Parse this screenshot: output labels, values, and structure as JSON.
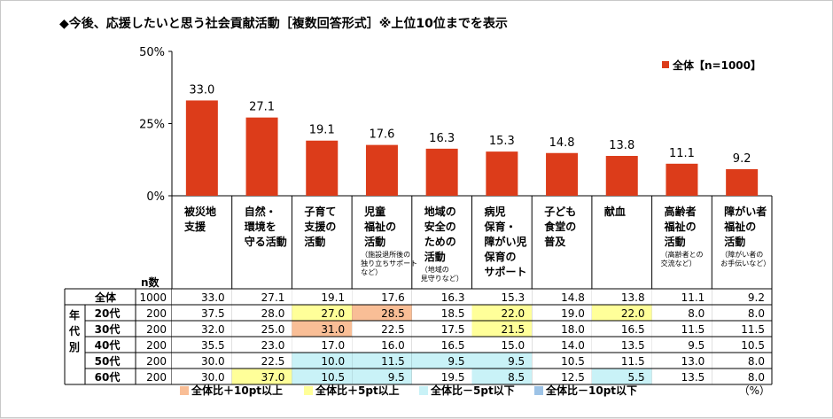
{
  "title": "◆今後、応援したいと思う社会貢献活動［複数回答形式］※上位10位までを表示",
  "chart_data": {
    "type": "bar",
    "ylim": [
      0,
      50
    ],
    "yticks": [
      "0%",
      "25%",
      "50%"
    ],
    "ytick_values": [
      0,
      25,
      50
    ],
    "bar_color": "#dc3c1a",
    "legend": "全体【n=1000】",
    "categories": [
      {
        "label": [
          "被災地",
          "支援"
        ],
        "sub": []
      },
      {
        "label": [
          "自然・",
          "環境を",
          "守る活動"
        ],
        "sub": []
      },
      {
        "label": [
          "子育て",
          "支援の",
          "活動"
        ],
        "sub": []
      },
      {
        "label": [
          "児童",
          "福祉の",
          "活動"
        ],
        "sub": [
          "（施設退所後の",
          "独り立ちサポート",
          "など）"
        ]
      },
      {
        "label": [
          "地域の",
          "安全の",
          "ための",
          "活動"
        ],
        "sub": [
          "（地域の",
          "見守りなど）"
        ]
      },
      {
        "label": [
          "病児",
          "保育・",
          "障がい児",
          "保育の",
          "サポート"
        ],
        "sub": []
      },
      {
        "label": [
          "子ども",
          "食堂の",
          "普及"
        ],
        "sub": []
      },
      {
        "label": [
          "献血"
        ],
        "sub": []
      },
      {
        "label": [
          "高齢者",
          "福祉の",
          "活動"
        ],
        "sub": [
          "（高齢者との",
          "交流など）"
        ]
      },
      {
        "label": [
          "障がい者",
          "福祉の",
          "活動"
        ],
        "sub": [
          "（障がい者の",
          "お手伝いなど）"
        ]
      }
    ],
    "series": [
      {
        "values": [
          33.0,
          27.1,
          19.1,
          17.6,
          16.3,
          15.3,
          14.8,
          13.8,
          11.1,
          9.2
        ]
      }
    ]
  },
  "table": {
    "n_header": "n数",
    "group_label": [
      "年",
      "代",
      "別"
    ],
    "rows": [
      {
        "label": "全体",
        "n": "1000",
        "values": [
          "33.0",
          "27.1",
          "19.1",
          "17.6",
          "16.3",
          "15.3",
          "14.8",
          "13.8",
          "11.1",
          "9.2"
        ],
        "hl": [
          0,
          0,
          0,
          0,
          0,
          0,
          0,
          0,
          0,
          0
        ]
      },
      {
        "label": "20代",
        "n": "200",
        "values": [
          "37.5",
          "28.0",
          "27.0",
          "28.5",
          "18.5",
          "22.0",
          "19.0",
          "22.0",
          "8.0",
          "8.0"
        ],
        "hl": [
          0,
          0,
          2,
          1,
          0,
          2,
          0,
          2,
          0,
          0
        ]
      },
      {
        "label": "30代",
        "n": "200",
        "values": [
          "32.0",
          "25.0",
          "31.0",
          "22.5",
          "17.5",
          "21.5",
          "18.0",
          "16.5",
          "11.5",
          "11.5"
        ],
        "hl": [
          0,
          0,
          1,
          0,
          0,
          2,
          0,
          0,
          0,
          0
        ]
      },
      {
        "label": "40代",
        "n": "200",
        "values": [
          "35.5",
          "23.0",
          "17.0",
          "16.0",
          "16.5",
          "15.0",
          "14.0",
          "13.5",
          "9.5",
          "10.5"
        ],
        "hl": [
          0,
          0,
          0,
          0,
          0,
          0,
          0,
          0,
          0,
          0
        ]
      },
      {
        "label": "50代",
        "n": "200",
        "values": [
          "30.0",
          "22.5",
          "10.0",
          "11.5",
          "9.5",
          "9.5",
          "10.5",
          "11.5",
          "13.0",
          "8.0"
        ],
        "hl": [
          0,
          0,
          3,
          3,
          3,
          3,
          0,
          0,
          0,
          0
        ]
      },
      {
        "label": "60代",
        "n": "200",
        "values": [
          "30.0",
          "37.0",
          "10.5",
          "9.5",
          "19.5",
          "8.5",
          "12.5",
          "5.5",
          "13.5",
          "8.0"
        ],
        "hl": [
          0,
          2,
          3,
          3,
          0,
          3,
          0,
          3,
          0,
          0
        ]
      }
    ]
  },
  "highlight_colors": [
    "#ffffff",
    "#f9be96",
    "#ffff99",
    "#c9f2f7",
    "#9dc3e6"
  ],
  "highlight_legend": [
    {
      "label": "全体比＋10pt以上",
      "color": "#f9be96"
    },
    {
      "label": "全体比＋5pt以上",
      "color": "#ffff99"
    },
    {
      "label": "全体比－5pt以下",
      "color": "#c9f2f7"
    },
    {
      "label": "全体比－10pt以下",
      "color": "#9dc3e6"
    }
  ],
  "unit": "（%）"
}
